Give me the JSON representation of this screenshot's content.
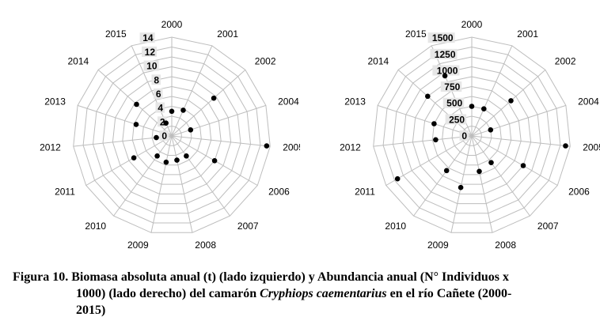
{
  "chart_data": [
    {
      "type": "radar",
      "categories": [
        "2000",
        "2001",
        "2002",
        "2004",
        "2005",
        "2006",
        "2007",
        "2008",
        "2009",
        "2010",
        "2011",
        "2012",
        "2013",
        "2014",
        "2015"
      ],
      "values": [
        3.5,
        4.0,
        8.0,
        2.8,
        13.5,
        7.0,
        3.5,
        3.5,
        3.8,
        3.5,
        6.2,
        2.2,
        5.3,
        6.7,
        2.0
      ],
      "rlim": [
        0,
        14
      ],
      "ticks": [
        "0",
        "2",
        "4",
        "6",
        "8",
        "10",
        "12",
        "14"
      ],
      "grid": true,
      "legend": "none"
    },
    {
      "type": "radar",
      "categories": [
        "2000",
        "2001",
        "2002",
        "2004",
        "2005",
        "2006",
        "2007",
        "2008",
        "2009",
        "2010",
        "2011",
        "2012",
        "2013",
        "2014",
        "2015"
      ],
      "values": [
        450,
        450,
        800,
        300,
        1430,
        900,
        500,
        550,
        800,
        650,
        1300,
        550,
        600,
        900,
        1000
      ],
      "rlim": [
        0,
        1500
      ],
      "ticks": [
        "0",
        "250",
        "500",
        "750",
        "1000",
        "1250",
        "1500"
      ],
      "grid": true,
      "legend": "none"
    }
  ],
  "caption": {
    "prefix": "Figura 10. Biomasa absoluta anual (t) (lado izquierdo) y Abundancia anual (N° Individuos x",
    "line2_start": "1000) (lado derecho) del camarón ",
    "species": "Cryphiops caementarius",
    "line2_end": " en el río Cañete (2000-",
    "line3": "2015)"
  }
}
